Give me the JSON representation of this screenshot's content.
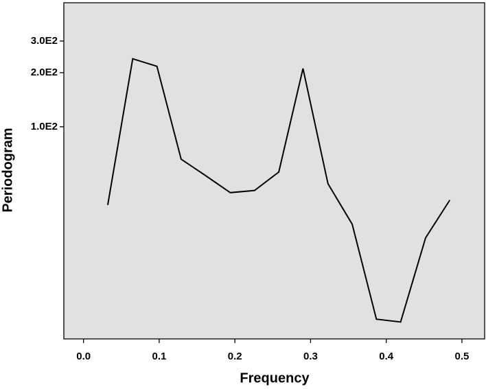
{
  "chart_data": {
    "type": "line",
    "xlabel": "Frequency",
    "ylabel": "Periodogram",
    "x": [
      0.032,
      0.065,
      0.097,
      0.129,
      0.161,
      0.194,
      0.226,
      0.258,
      0.29,
      0.323,
      0.355,
      0.387,
      0.419,
      0.452,
      0.484
    ],
    "series": [
      {
        "color": "#000000",
        "values": [
          36.7,
          239,
          217,
          66,
          53.6,
          43,
          44.2,
          56,
          211,
          48.2,
          28.7,
          8.5,
          8.2,
          24.1,
          39.1
        ]
      }
    ],
    "xlim": [
      -0.026,
      0.53
    ],
    "xticks": [
      {
        "value": 0,
        "label": "0.0"
      },
      0.1,
      0.2,
      0.3,
      0.4,
      0.5
    ],
    "ylim": [
      6.6,
      490
    ],
    "yscale": "log",
    "yticks": [
      {
        "value": 100,
        "label": "1.0E2"
      },
      {
        "value": 200,
        "label": "2.0E2"
      },
      {
        "value": 300,
        "label": "3.0E2"
      }
    ],
    "background": "#e1e1e1"
  }
}
